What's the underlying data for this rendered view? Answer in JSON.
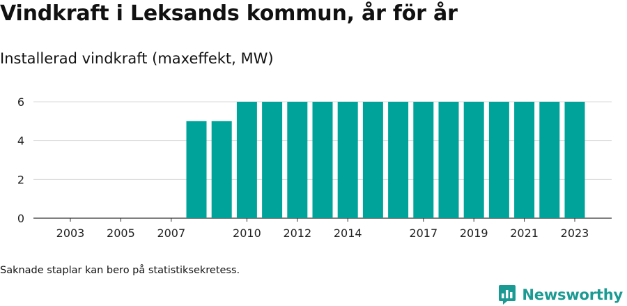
{
  "title": "Vindkraft i Leksands kommun, år för år",
  "subtitle": "Installerad vindkraft (maxeffekt, MW)",
  "footnote": "Saknade staplar kan bero på statistiksekretess.",
  "brand": {
    "name": "Newsworthy",
    "icon": "newsworthy-logo-icon",
    "color": "#1a9a92"
  },
  "chart_data": {
    "type": "bar",
    "title": "",
    "xlabel": "",
    "ylabel": "",
    "categories": [
      "2003",
      "2004",
      "2005",
      "2006",
      "2007",
      "2008",
      "2009",
      "2010",
      "2011",
      "2012",
      "2013",
      "2014",
      "2015",
      "2016",
      "2017",
      "2018",
      "2019",
      "2020",
      "2021",
      "2022",
      "2023"
    ],
    "values": [
      null,
      null,
      null,
      null,
      null,
      5,
      5,
      6,
      6,
      6,
      6,
      6,
      6,
      6,
      6,
      6,
      6,
      6,
      6,
      6,
      6
    ],
    "x_tick_labels": [
      "2003",
      "2005",
      "2007",
      "2010",
      "2012",
      "2014",
      "2017",
      "2019",
      "2021",
      "2023"
    ],
    "y_ticks": [
      0,
      2,
      4,
      6
    ],
    "ylim": [
      0,
      6
    ],
    "grid": true,
    "legend": "none",
    "bar_color": "#00a39a"
  }
}
